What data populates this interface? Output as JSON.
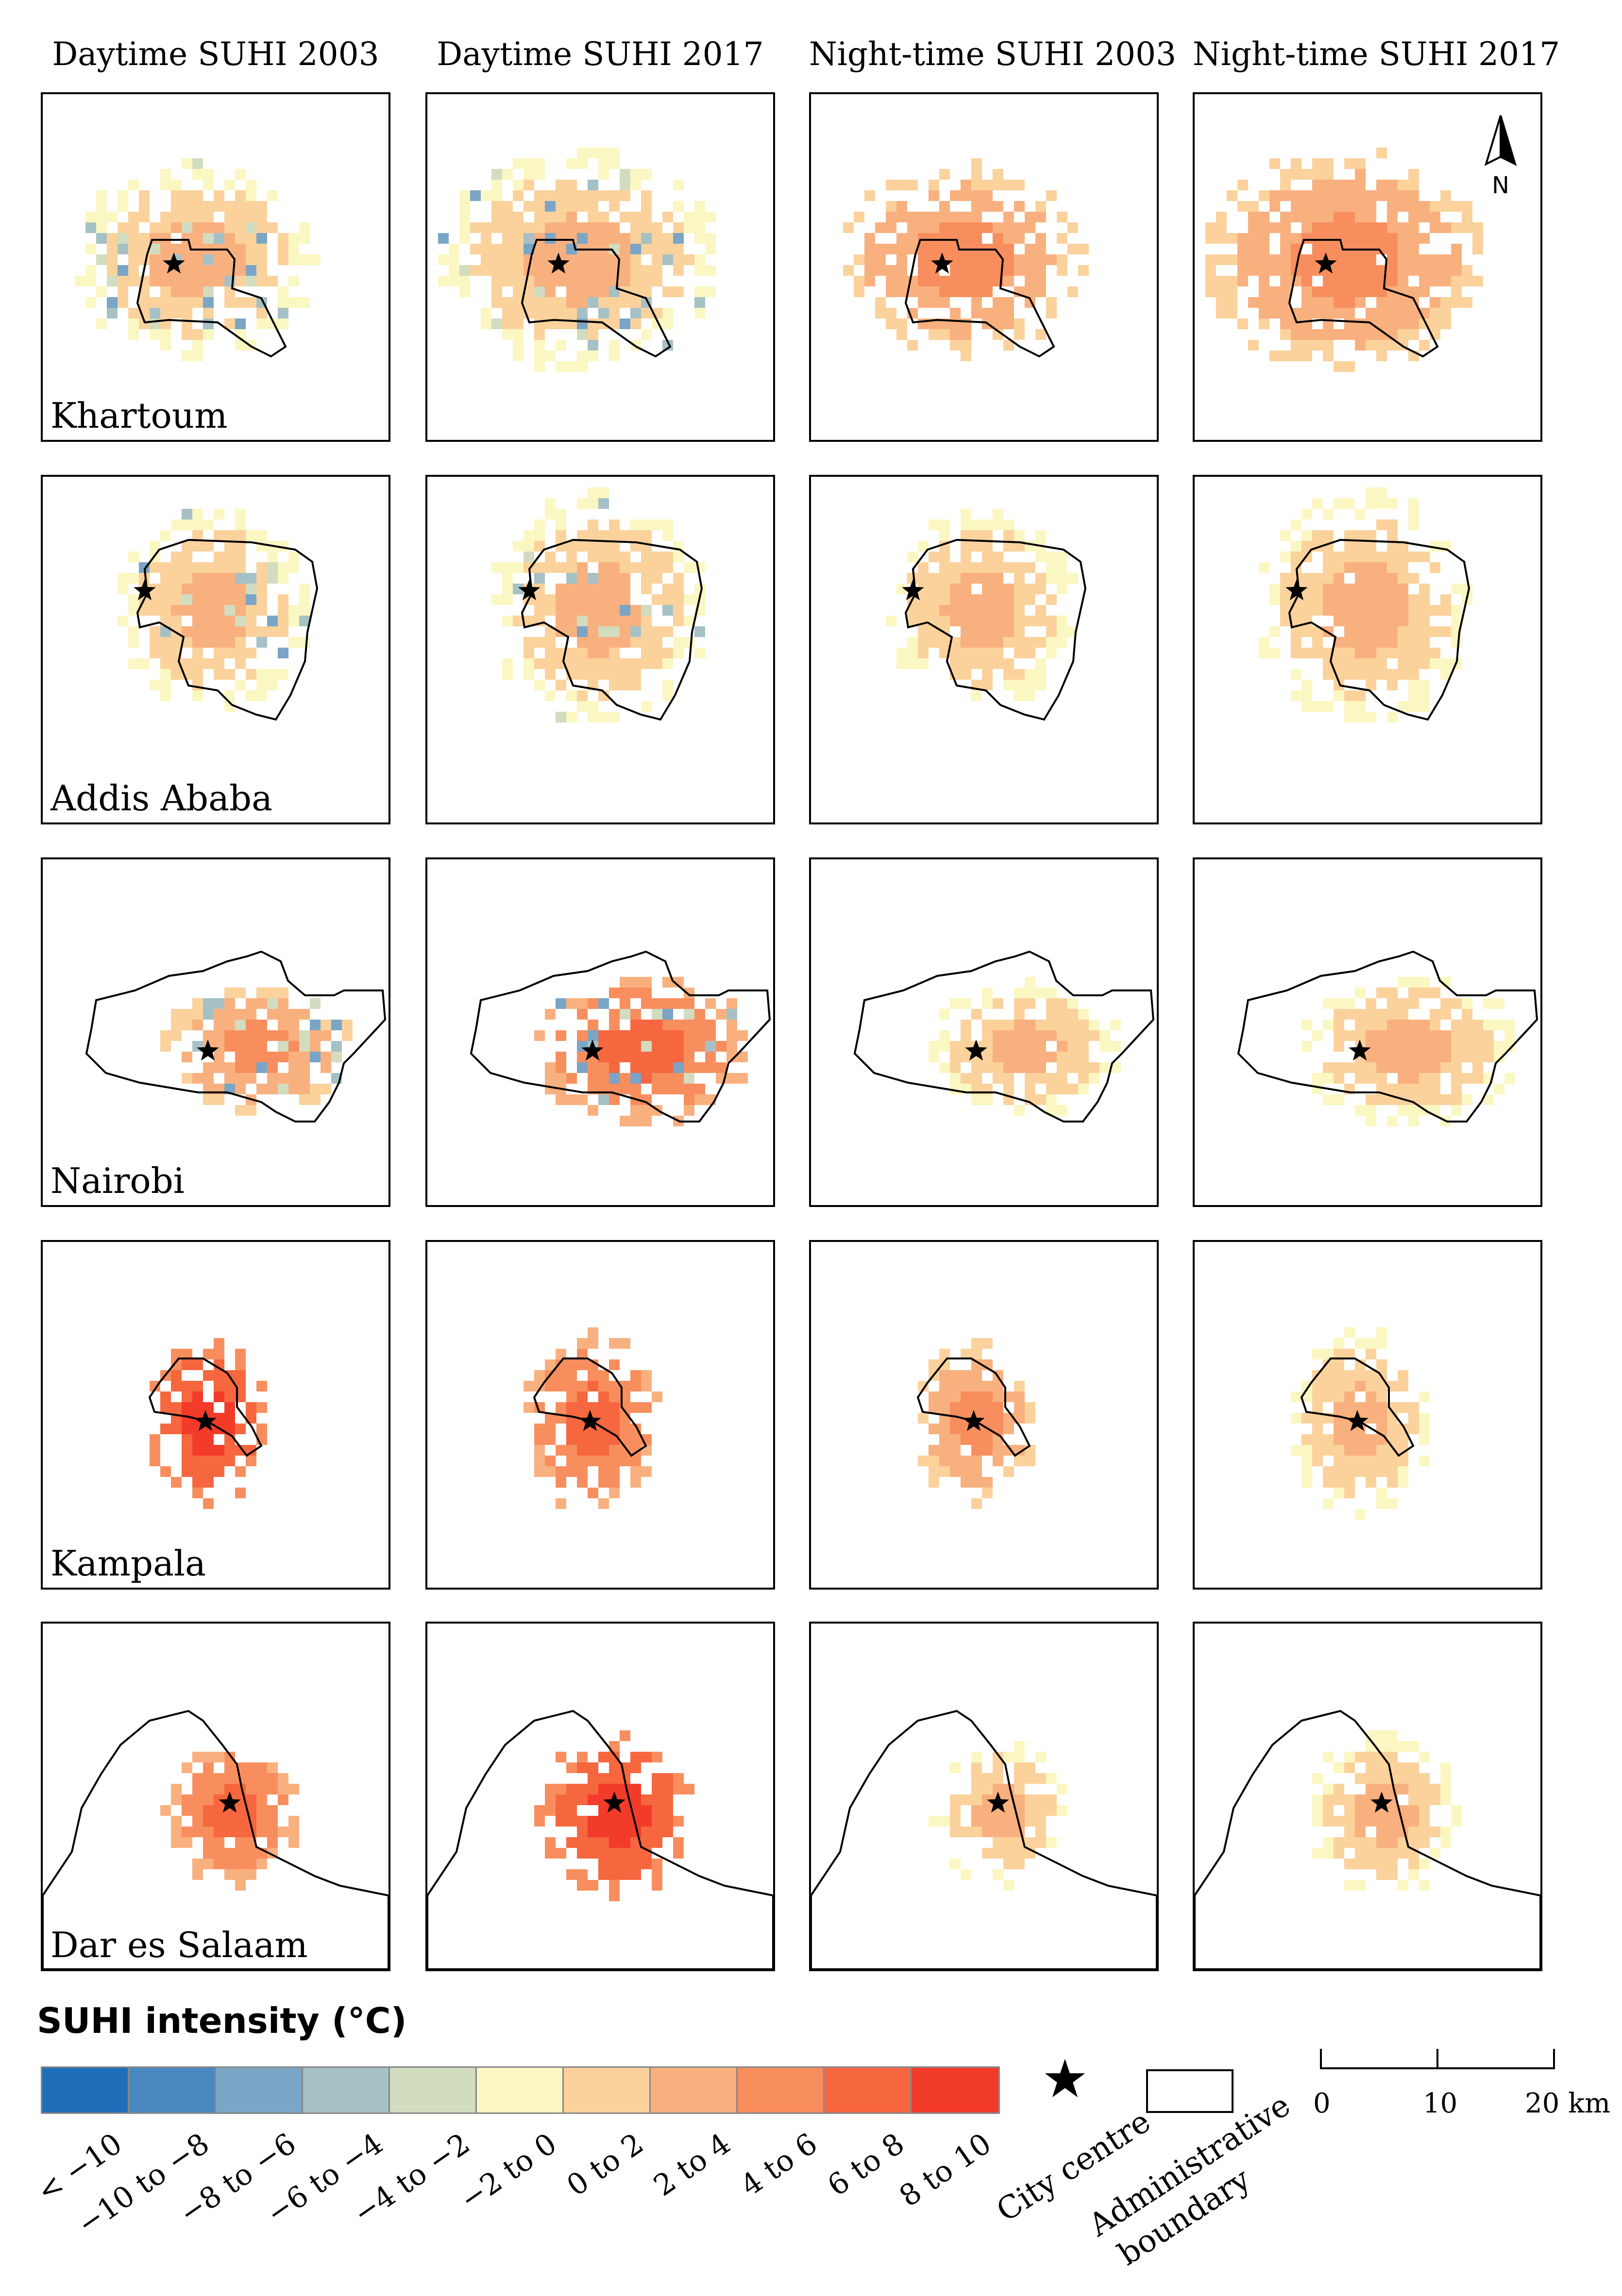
{
  "columns": [
    "Daytime SUHI 2003",
    "Daytime SUHI 2017",
    "Night-time SUHI 2003",
    "Night-time SUHI 2017"
  ],
  "cities": [
    "Khartoum",
    "Addis Ababa",
    "Nairobi",
    "Kampala",
    "Dar es Salaam"
  ],
  "legend": {
    "title": "SUHI intensity (°C)",
    "classes": [
      {
        "label": "< −10",
        "color": "#1f6fb8"
      },
      {
        "label": "−10 to −8",
        "color": "#4a88c0"
      },
      {
        "label": "−8 to −6",
        "color": "#7aa5c6"
      },
      {
        "label": "−6 to −4",
        "color": "#a6c1c6"
      },
      {
        "label": "−4 to −2",
        "color": "#d2dcbf"
      },
      {
        "label": "−2 to 0",
        "color": "#fbf7c2"
      },
      {
        "label": "0 to 2",
        "color": "#fbd29c"
      },
      {
        "label": "2 to 4",
        "color": "#f9b07f"
      },
      {
        "label": "4 to 6",
        "color": "#f88e5e"
      },
      {
        "label": "6 to 8",
        "color": "#f6663f"
      },
      {
        "label": "8 to 10",
        "color": "#f33b2a"
      }
    ],
    "city_centre_label": "City centre",
    "admin_boundary_label": "Administrative boundary",
    "admin_boundary_line1": "Administrative",
    "admin_boundary_line2": "boundary"
  },
  "scale": {
    "ticks": [
      "0",
      "10",
      "20 km"
    ]
  },
  "north_label": "N"
}
